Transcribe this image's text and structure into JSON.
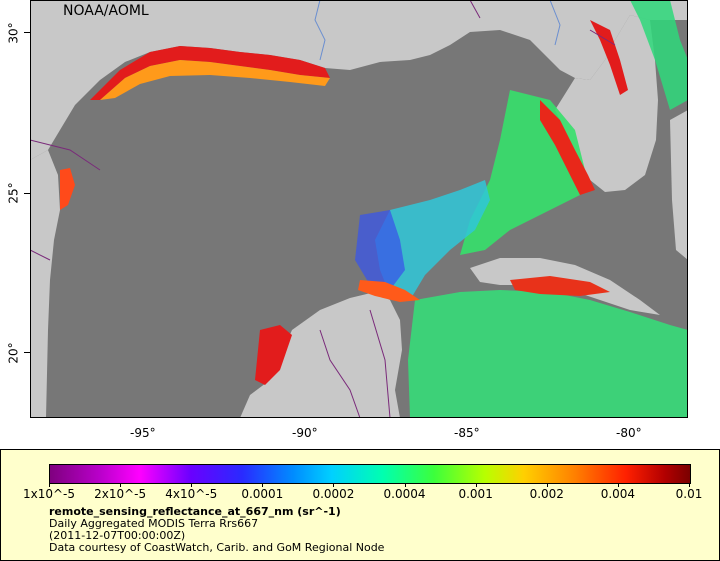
{
  "credit": "NOAA/AOML",
  "lon_ticks": [
    "-95°",
    "-90°",
    "-85°",
    "-80°"
  ],
  "lat_ticks": [
    "30°",
    "25°",
    "20°"
  ],
  "colorbar": {
    "labels": [
      "1x10^-5",
      "2x10^-5",
      "4x10^-5",
      "0.0001",
      "0.0002",
      "0.0004",
      "0.001",
      "0.002",
      "0.004",
      "0.01"
    ]
  },
  "info": {
    "variable": "remote_sensing_reflectance_at_667_nm (sr^-1)",
    "dataset": "Daily Aggregated MODIS Terra Rrs667",
    "date": "(2011-12-07T00:00:00Z)",
    "source": "Data courtesy of CoastWatch, Carib. and GoM Regional Node"
  },
  "colors": {
    "ocean_nodata": "#777777",
    "land": "#c8c8c8",
    "legend_bg": "#ffffcc",
    "border": "#7a2a7a",
    "river": "#6b8fd0"
  }
}
